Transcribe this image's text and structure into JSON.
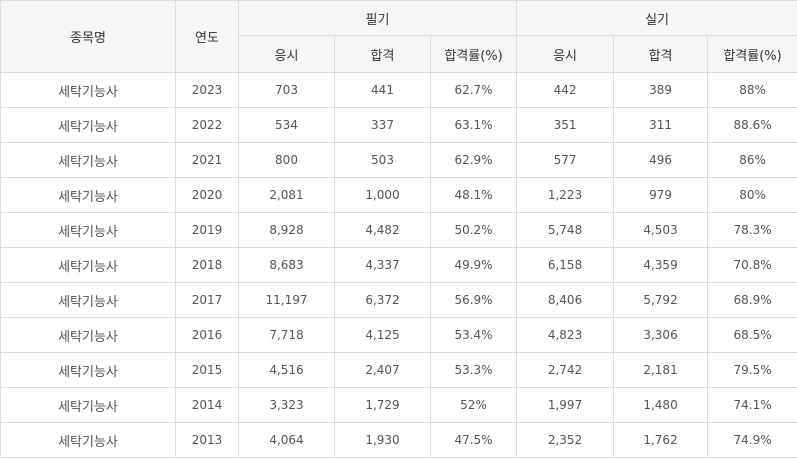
{
  "header": {
    "name": "종목명",
    "year": "연도",
    "written": "필기",
    "practical": "실기",
    "applicants": "응시",
    "passed": "합격",
    "pass_rate": "합격률(%)"
  },
  "rows": [
    {
      "name": "세탁기능사",
      "year": "2023",
      "w_app": "703",
      "w_pass": "441",
      "w_rate": "62.7%",
      "p_app": "442",
      "p_pass": "389",
      "p_rate": "88%"
    },
    {
      "name": "세탁기능사",
      "year": "2022",
      "w_app": "534",
      "w_pass": "337",
      "w_rate": "63.1%",
      "p_app": "351",
      "p_pass": "311",
      "p_rate": "88.6%"
    },
    {
      "name": "세탁기능사",
      "year": "2021",
      "w_app": "800",
      "w_pass": "503",
      "w_rate": "62.9%",
      "p_app": "577",
      "p_pass": "496",
      "p_rate": "86%"
    },
    {
      "name": "세탁기능사",
      "year": "2020",
      "w_app": "2,081",
      "w_pass": "1,000",
      "w_rate": "48.1%",
      "p_app": "1,223",
      "p_pass": "979",
      "p_rate": "80%"
    },
    {
      "name": "세탁기능사",
      "year": "2019",
      "w_app": "8,928",
      "w_pass": "4,482",
      "w_rate": "50.2%",
      "p_app": "5,748",
      "p_pass": "4,503",
      "p_rate": "78.3%"
    },
    {
      "name": "세탁기능사",
      "year": "2018",
      "w_app": "8,683",
      "w_pass": "4,337",
      "w_rate": "49.9%",
      "p_app": "6,158",
      "p_pass": "4,359",
      "p_rate": "70.8%"
    },
    {
      "name": "세탁기능사",
      "year": "2017",
      "w_app": "11,197",
      "w_pass": "6,372",
      "w_rate": "56.9%",
      "p_app": "8,406",
      "p_pass": "5,792",
      "p_rate": "68.9%"
    },
    {
      "name": "세탁기능사",
      "year": "2016",
      "w_app": "7,718",
      "w_pass": "4,125",
      "w_rate": "53.4%",
      "p_app": "4,823",
      "p_pass": "3,306",
      "p_rate": "68.5%"
    },
    {
      "name": "세탁기능사",
      "year": "2015",
      "w_app": "4,516",
      "w_pass": "2,407",
      "w_rate": "53.3%",
      "p_app": "2,742",
      "p_pass": "2,181",
      "p_rate": "79.5%"
    },
    {
      "name": "세탁기능사",
      "year": "2014",
      "w_app": "3,323",
      "w_pass": "1,729",
      "w_rate": "52%",
      "p_app": "1,997",
      "p_pass": "1,480",
      "p_rate": "74.1%"
    },
    {
      "name": "세탁기능사",
      "year": "2013",
      "w_app": "4,064",
      "w_pass": "1,930",
      "w_rate": "47.5%",
      "p_app": "2,352",
      "p_pass": "1,762",
      "p_rate": "74.9%"
    }
  ]
}
